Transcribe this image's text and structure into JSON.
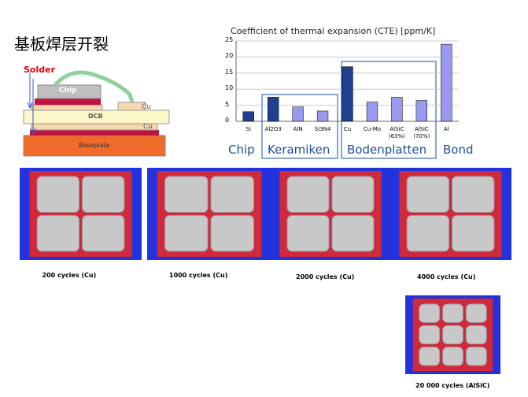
{
  "slide_title": "基板焊层开裂",
  "diagram": {
    "labels": [
      "Solder",
      "Chip",
      "Cu",
      "DCB",
      "Cu",
      "Baseplate"
    ]
  },
  "chart_data": {
    "type": "bar",
    "title": "Coefficient of thermal expansion (CTE) [ppm/K]",
    "categories": [
      "Si",
      "Al2O3",
      "AlN",
      "Si3N4",
      "Cu",
      "Cu-Mo",
      "AlSiC (63%)",
      "AlSiC (70%)",
      "Al"
    ],
    "values": [
      3,
      7.5,
      4.5,
      3.2,
      17,
      6,
      7.5,
      6.5,
      24
    ],
    "colors": [
      "#1f3f8f",
      "#1f3f8f",
      "#9999ee",
      "#9999ee",
      "#1f3f8f",
      "#9999ee",
      "#9999ee",
      "#9999ee",
      "#9999ee"
    ],
    "ylim": [
      0,
      25
    ],
    "yticks": [
      0,
      5,
      10,
      15,
      20,
      25
    ],
    "groups": [
      "Chip",
      "Keramiken",
      "Bodenplatten",
      "Bond"
    ]
  },
  "images": [
    {
      "caption": "200 cycles (Cu)"
    },
    {
      "caption": "1000 cycles (Cu)"
    },
    {
      "caption": "2000 cycles (Cu)"
    },
    {
      "caption": "4000 cycles (Cu)"
    },
    {
      "caption": "20 000 cycles (AlSiC)"
    }
  ]
}
